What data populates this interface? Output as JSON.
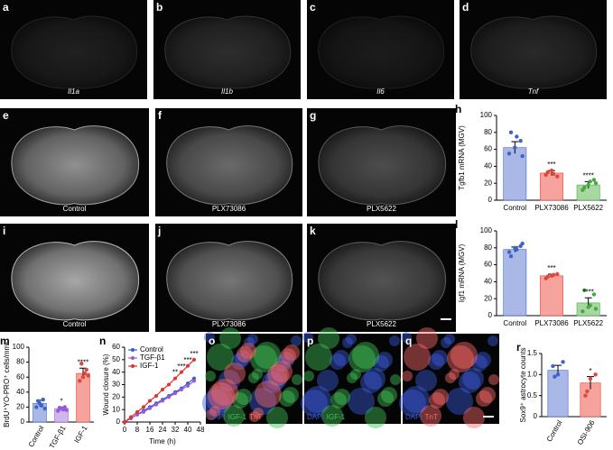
{
  "images": [
    {
      "label": "a",
      "caption": "Il1a",
      "italic": true,
      "brightness": 0.12
    },
    {
      "label": "b",
      "caption": "Il1b",
      "italic": true,
      "brightness": 0.18
    },
    {
      "label": "c",
      "caption": "Il6",
      "italic": true,
      "brightness": 0.1
    },
    {
      "label": "d",
      "caption": "Tnf",
      "italic": true,
      "brightness": 0.16
    },
    {
      "label": "e",
      "caption": "Control",
      "brightness": 0.62
    },
    {
      "label": "f",
      "caption": "PLX73086",
      "brightness": 0.45
    },
    {
      "label": "g",
      "caption": "PLX5622",
      "brightness": 0.32
    },
    {
      "label": "i",
      "caption": "Control",
      "brightness": 0.72
    },
    {
      "label": "j",
      "caption": "PLX73086",
      "brightness": 0.5
    },
    {
      "label": "k",
      "caption": "PLX5622",
      "brightness": 0.35
    },
    {
      "label": "o",
      "channels": [
        "DAPI",
        "IGF-1",
        "TnT"
      ],
      "channel_colors": [
        "#3b5bdb",
        "#40c057",
        "#ff6b6b"
      ]
    },
    {
      "label": "p",
      "channels": [
        "DAPI",
        "IGF-1"
      ],
      "channel_colors": [
        "#3b5bdb",
        "#40c057"
      ]
    },
    {
      "label": "q",
      "channels": [
        "DAPI",
        "TnT"
      ],
      "channel_colors": [
        "#3b5bdb",
        "#ff6b6b"
      ]
    }
  ],
  "chart_data": [
    {
      "type": "bar",
      "panel": "h",
      "y_label": "Tgfb1 mRNA (MGV)",
      "categories": [
        "Control",
        "PLX73086",
        "PLX5622"
      ],
      "values": [
        62,
        32,
        18
      ],
      "errors": [
        7,
        3,
        4
      ],
      "colors": [
        "#a9b8e6",
        "#f5a39c",
        "#a7d8a0"
      ],
      "point_colors": [
        "#3f63c7",
        "#e0473c",
        "#48a843"
      ],
      "points": [
        [
          55,
          62,
          70,
          80,
          75,
          52
        ],
        [
          30,
          35,
          28,
          33,
          31
        ],
        [
          12,
          18,
          24,
          15,
          22,
          20
        ]
      ],
      "sig": [
        null,
        "***",
        "****"
      ],
      "ylim": [
        0,
        100
      ],
      "yticks": [
        0,
        20,
        40,
        60,
        80,
        100
      ]
    },
    {
      "type": "bar",
      "panel": "l",
      "y_label": "Igf1 mRNA (MGV)",
      "categories": [
        "Control",
        "PLX73086",
        "PLX5622"
      ],
      "values": [
        78,
        47,
        15
      ],
      "errors": [
        3,
        2,
        6
      ],
      "colors": [
        "#a9b8e6",
        "#f5a39c",
        "#a7d8a0"
      ],
      "point_colors": [
        "#3f63c7",
        "#e0473c",
        "#48a843"
      ],
      "points": [
        [
          75,
          80,
          82,
          70,
          78,
          85
        ],
        [
          44,
          47,
          49,
          46,
          48
        ],
        [
          5,
          10,
          25,
          30,
          12,
          8
        ]
      ],
      "sig": [
        null,
        "***",
        "****"
      ],
      "ylim": [
        0,
        100
      ],
      "yticks": [
        0,
        20,
        40,
        60,
        80,
        100
      ]
    },
    {
      "type": "bar",
      "panel": "m",
      "y_label": "BrdU⁺YO-PRO⁺ cells/mm²",
      "categories": [
        "Control",
        "TGF-β1",
        "IGF-1"
      ],
      "rotate_labels": true,
      "values": [
        25,
        18,
        65
      ],
      "errors": [
        4,
        2,
        7
      ],
      "colors": [
        "#a9b8e6",
        "#cdb8ee",
        "#f5a39c"
      ],
      "point_colors": [
        "#3f63c7",
        "#9b59d6",
        "#e0473c"
      ],
      "points": [
        [
          20,
          25,
          30,
          28,
          22,
          18
        ],
        [
          15,
          18,
          20,
          19,
          17,
          16
        ],
        [
          55,
          60,
          70,
          78,
          65,
          62
        ]
      ],
      "sig": [
        null,
        "*",
        "****"
      ],
      "ylim": [
        0,
        100
      ],
      "yticks": [
        0,
        20,
        40,
        60,
        80,
        100
      ]
    },
    {
      "type": "line",
      "panel": "n",
      "y_label": "Wound closure (%)",
      "x_label": "Time (h)",
      "legend": "upper left",
      "x": [
        0,
        4,
        8,
        12,
        16,
        20,
        24,
        28,
        32,
        36,
        40,
        44
      ],
      "series": [
        {
          "name": "Control",
          "color": "#2f5fd0",
          "values": [
            0,
            3,
            6,
            9,
            12,
            15,
            18,
            21,
            24,
            27,
            31,
            35
          ]
        },
        {
          "name": "TGF-β1",
          "color": "#9b59d6",
          "values": [
            0,
            3,
            6,
            8,
            11,
            14,
            17,
            20,
            23,
            26,
            29,
            33
          ]
        },
        {
          "name": "IGF-1",
          "color": "#e0332b",
          "values": [
            0,
            4,
            8,
            12,
            17,
            21,
            26,
            30,
            35,
            40,
            45,
            50
          ]
        }
      ],
      "annotations": [
        {
          "x": 32,
          "text": "**"
        },
        {
          "x": 36,
          "text": "***"
        },
        {
          "x": 40,
          "text": "***"
        },
        {
          "x": 44,
          "text": "***"
        }
      ],
      "xlim": [
        0,
        48
      ],
      "xticks": [
        0,
        8,
        16,
        24,
        32,
        40,
        48
      ],
      "ylim": [
        0,
        60
      ],
      "yticks": [
        0,
        10,
        20,
        30,
        40,
        50,
        60
      ]
    },
    {
      "type": "bar",
      "panel": "r",
      "y_label": "Sox9⁺ astrocyte counts",
      "categories": [
        "Control",
        "OSI-906"
      ],
      "rotate_labels": true,
      "values": [
        1.1,
        0.8
      ],
      "errors": [
        0.12,
        0.15
      ],
      "colors": [
        "#a9b8e6",
        "#f5a39c"
      ],
      "point_colors": [
        "#3f63c7",
        "#e0473c"
      ],
      "points": [
        [
          1.2,
          1.0,
          1.3,
          0.95
        ],
        [
          0.5,
          0.9,
          1.0,
          0.6
        ]
      ],
      "sig": [
        null,
        "*"
      ],
      "ylim": [
        0,
        1.5
      ],
      "yticks": [
        0,
        0.5,
        {
          "value": 1,
          "label": "1.0"
        },
        1.5
      ]
    }
  ]
}
